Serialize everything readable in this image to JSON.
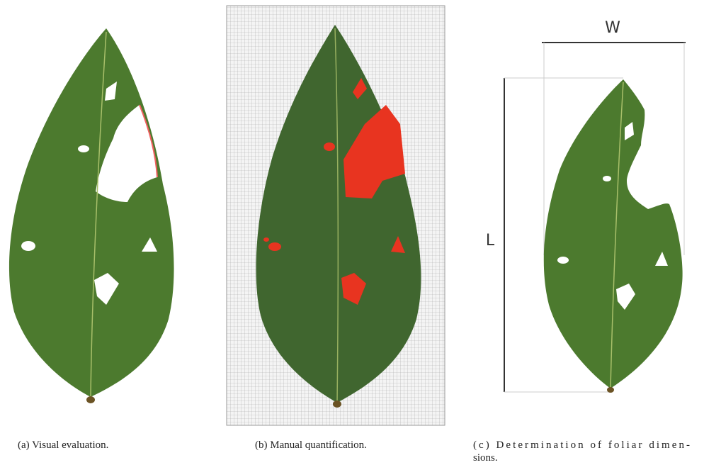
{
  "panels": [
    {
      "caption": "(a) Visual evaluation."
    },
    {
      "caption": "(b) Manual quantification."
    },
    {
      "caption_lines": [
        "(c) Determination of foliar dimen-",
        "sions."
      ]
    }
  ],
  "labels": {
    "width": "W",
    "length": "L"
  }
}
